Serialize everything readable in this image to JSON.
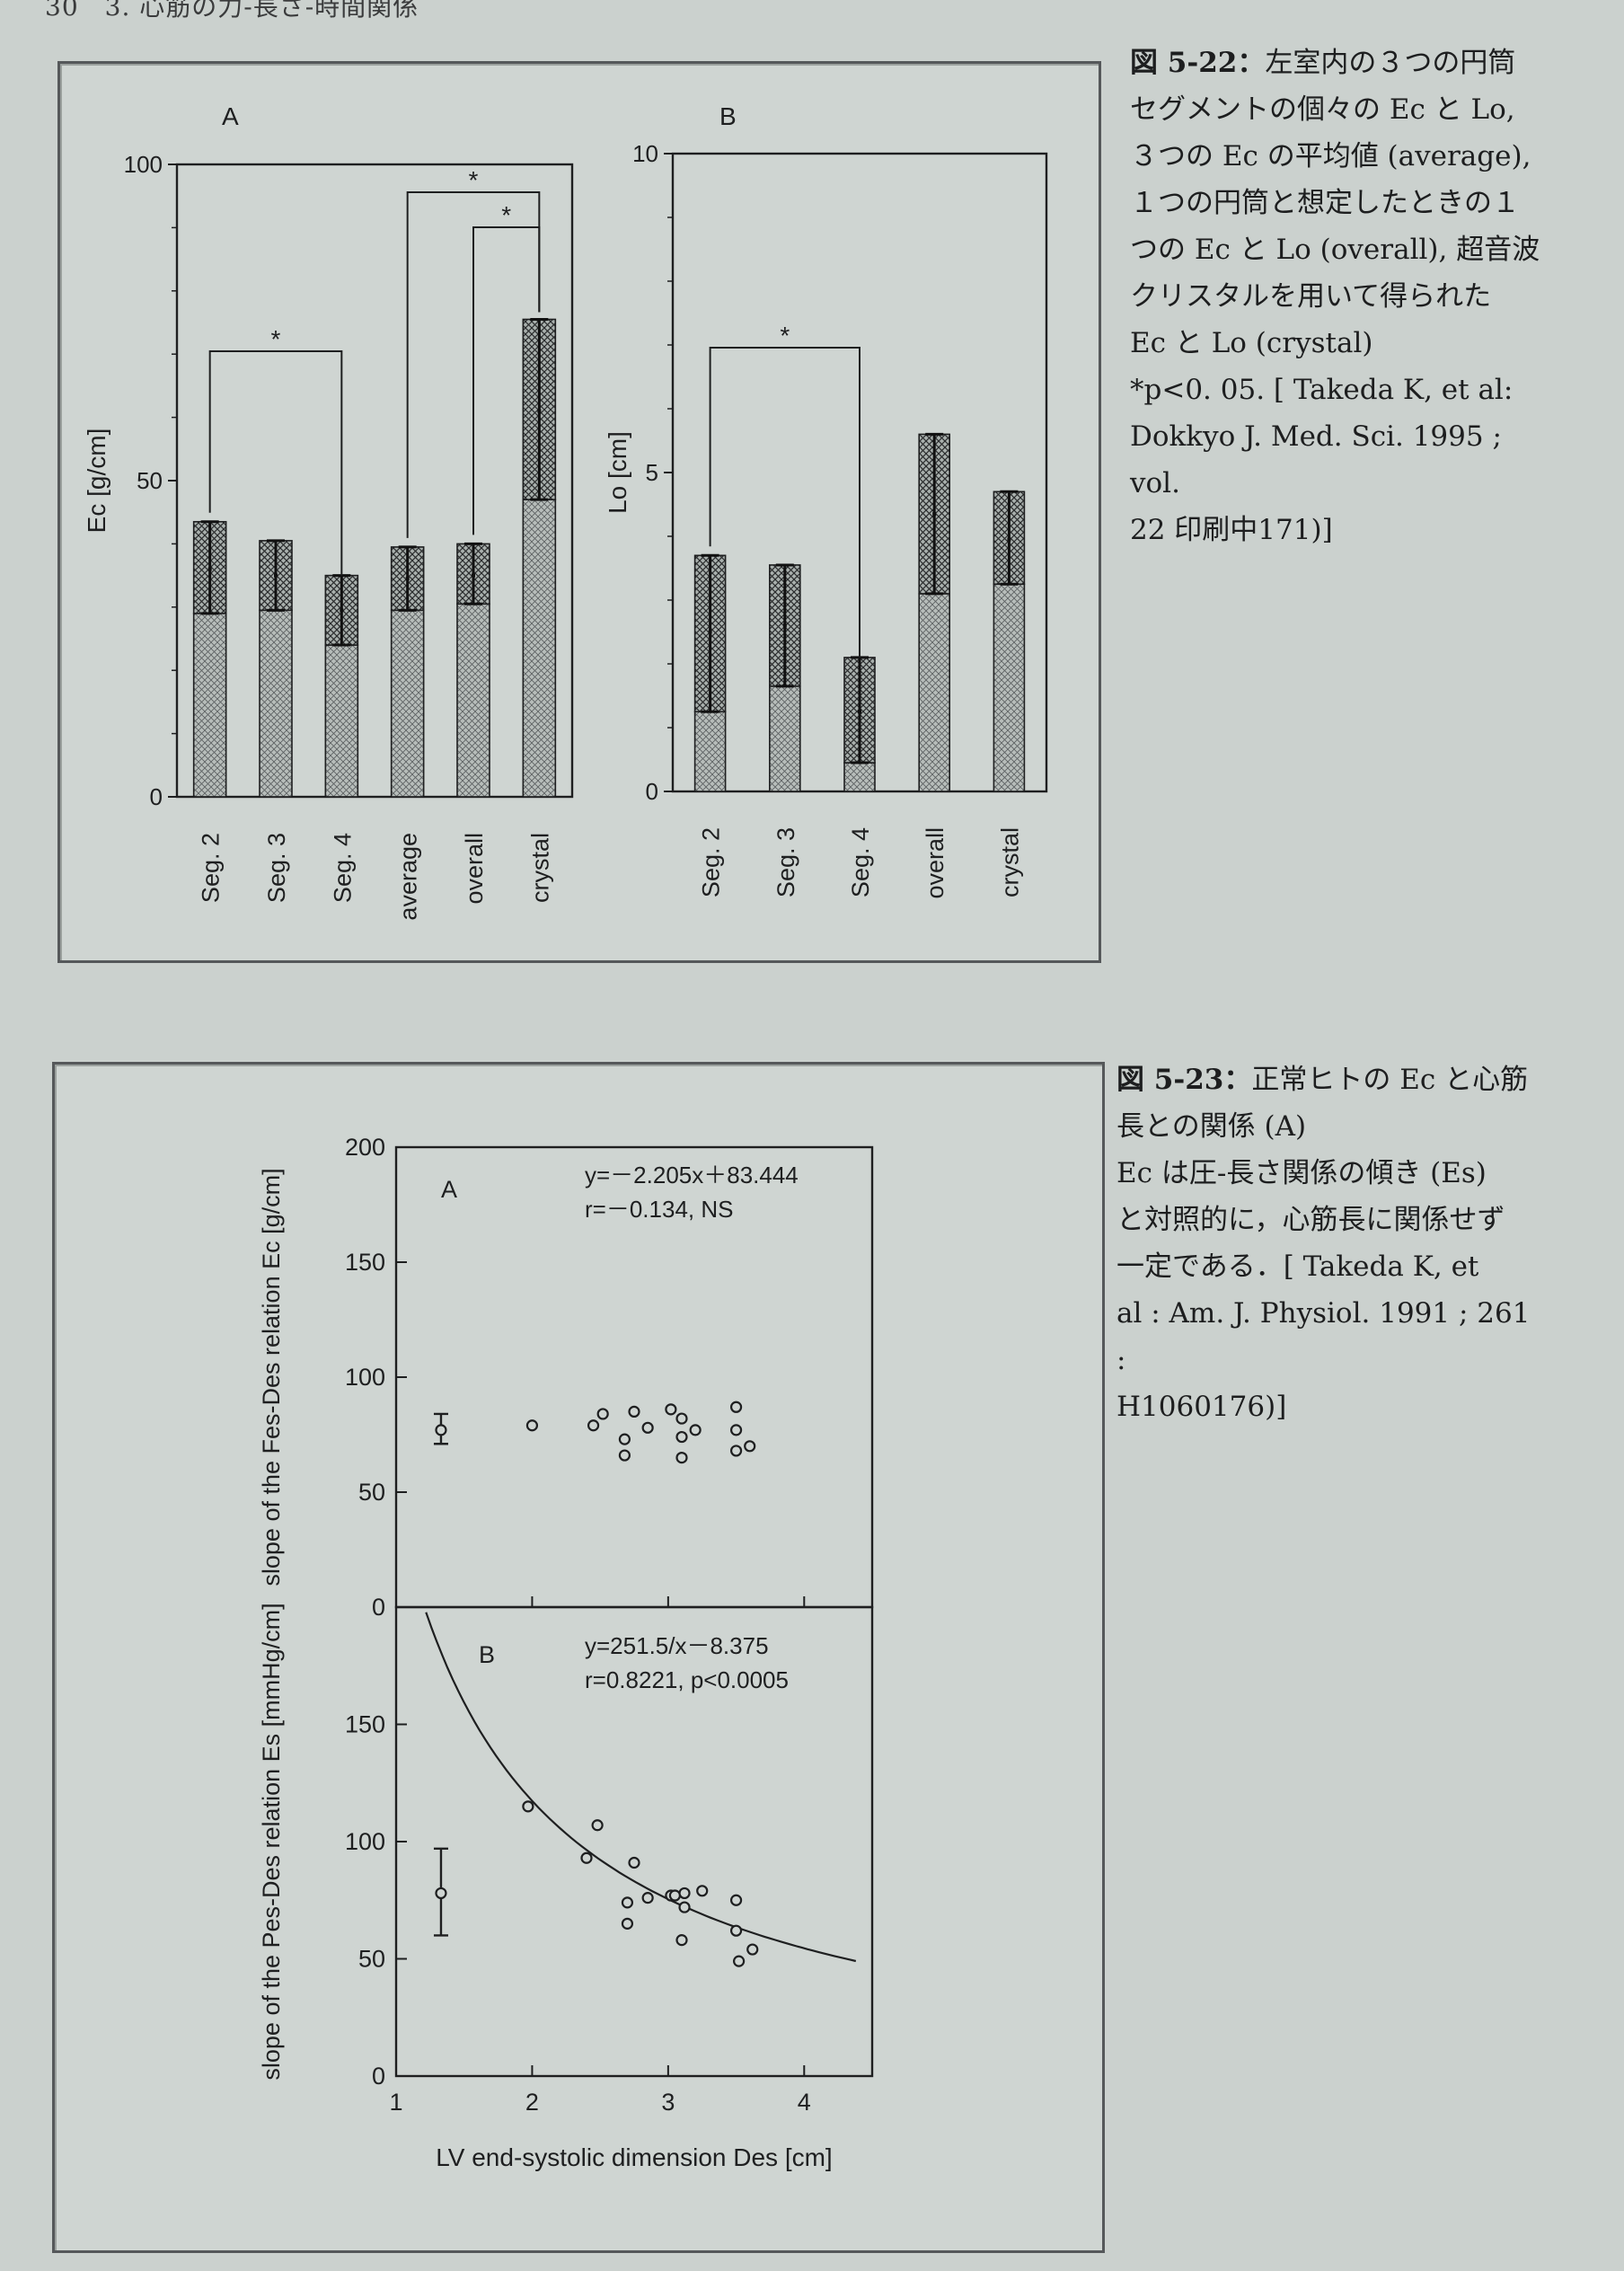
{
  "page": {
    "header": "30　3. 心筋の力-長さ-時間関係"
  },
  "captions": {
    "fig_5_22": {
      "label": "図 5-22：",
      "lines": [
        "左室内の３つの円筒",
        "セグメントの個々の Ec と Lo,",
        "３つの Ec の平均値 (average),",
        "１つの円筒と想定したときの１",
        "つの Ec と Lo (overall), 超音波",
        "クリスタルを用いて得られた",
        "Ec と Lo (crystal)",
        "*p<0. 05. [ Takeda K, et al:",
        "Dokkyo J. Med. Sci. 1995 ; vol.",
        "22 印刷中171)]"
      ]
    },
    "fig_5_23": {
      "label": "図 5-23：",
      "lines": [
        "正常ヒトの Ec と心筋",
        "長との関係 (A)",
        "Ec は圧-長さ関係の傾き (Es)",
        "と対照的に，心筋長に関係せず",
        "一定である．[ Takeda K, et",
        "al : Am. J. Physiol. 1991 ; 261 :",
        "H1060176)]"
      ]
    }
  },
  "chart_data": [
    {
      "type": "bar",
      "panel_label": "A",
      "ylabel": "Ec [g/cm]",
      "ylim": [
        0,
        100
      ],
      "yticks": [
        0,
        50,
        100
      ],
      "categories": [
        "Seg. 2",
        "Seg. 3",
        "Seg. 4",
        "average",
        "overall",
        "crystal"
      ],
      "values": [
        36,
        35,
        29.5,
        34.5,
        35,
        61
      ],
      "error_low": [
        29,
        29.5,
        24,
        29.5,
        30.5,
        47
      ],
      "error_high": [
        43.5,
        40.5,
        35,
        39.5,
        40,
        75.5
      ],
      "significance": [
        {
          "from": "Seg. 2",
          "to": "Seg. 4",
          "label": "*"
        },
        {
          "from": "average",
          "to": "crystal",
          "label": "*"
        },
        {
          "from": "overall",
          "to": "crystal",
          "label": "*"
        }
      ]
    },
    {
      "type": "bar",
      "panel_label": "B",
      "ylabel": "Lo [cm]",
      "ylim": [
        0,
        10
      ],
      "yticks": [
        0,
        5,
        10
      ],
      "categories": [
        "Seg. 2",
        "Seg. 3",
        "Seg. 4",
        "overall",
        "crystal"
      ],
      "values": [
        2.5,
        2.6,
        1.25,
        4.35,
        3.95
      ],
      "error_low": [
        1.25,
        1.65,
        0.45,
        3.1,
        3.25
      ],
      "error_high": [
        3.7,
        3.55,
        2.1,
        5.6,
        4.7
      ],
      "significance": [
        {
          "from": "Seg. 2",
          "to": "Seg. 4",
          "label": "*"
        }
      ]
    },
    {
      "type": "scatter",
      "panel_label": "A",
      "ylabel": "slope of the Fes-Des relation Ec [g/cm]",
      "ylim": [
        0,
        200
      ],
      "yticks": [
        0,
        50,
        100,
        150,
        200
      ],
      "xlim": [
        1,
        4.5
      ],
      "equation": "y=－2.205x＋83.444",
      "stats": "r=－0.134, NS",
      "mean_sd": {
        "x": 1.33,
        "y": 77,
        "low": 71,
        "high": 84
      },
      "points": [
        [
          2.0,
          79
        ],
        [
          2.45,
          79
        ],
        [
          2.52,
          84
        ],
        [
          2.68,
          73
        ],
        [
          2.68,
          66
        ],
        [
          2.75,
          85
        ],
        [
          2.85,
          78
        ],
        [
          3.02,
          86
        ],
        [
          3.1,
          82
        ],
        [
          3.1,
          74
        ],
        [
          3.1,
          65
        ],
        [
          3.2,
          77
        ],
        [
          3.5,
          87
        ],
        [
          3.5,
          77
        ],
        [
          3.5,
          68
        ],
        [
          3.6,
          70
        ]
      ]
    },
    {
      "type": "scatter",
      "panel_label": "B",
      "xlabel": "LV end-systolic dimension Des [cm]",
      "ylabel": "slope of the Pes-Des relation Es [mmHg/cm]",
      "ylim": [
        0,
        200
      ],
      "yticks": [
        0,
        50,
        100,
        150
      ],
      "xlim": [
        1,
        4.5
      ],
      "xticks": [
        1,
        2,
        3,
        4
      ],
      "equation": "y=251.5/x－8.375",
      "stats": "r=0.8221, p<0.0005",
      "fit": {
        "a": 251.5,
        "b": -8.375,
        "x_from": 1.22,
        "x_to": 4.38
      },
      "mean_sd": {
        "x": 1.33,
        "y": 78,
        "low": 60,
        "high": 97
      },
      "points": [
        [
          1.97,
          115
        ],
        [
          2.4,
          93
        ],
        [
          2.48,
          107
        ],
        [
          2.7,
          65
        ],
        [
          2.7,
          74
        ],
        [
          2.75,
          91
        ],
        [
          2.85,
          76
        ],
        [
          3.02,
          77
        ],
        [
          3.05,
          77
        ],
        [
          3.1,
          58
        ],
        [
          3.12,
          72
        ],
        [
          3.12,
          78
        ],
        [
          3.25,
          79
        ],
        [
          3.5,
          75
        ],
        [
          3.5,
          62
        ],
        [
          3.52,
          49
        ],
        [
          3.62,
          54
        ]
      ]
    }
  ]
}
